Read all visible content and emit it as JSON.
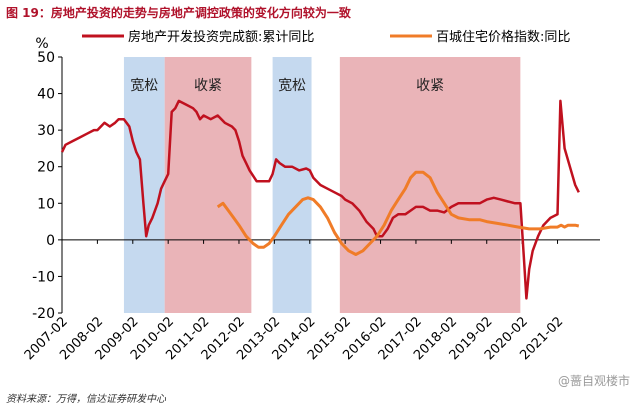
{
  "figure_title": "图 19：房地产投资的走势与房地产调控政策的变化方向较为一致",
  "source": "资料来源：万得，信达证券研发中心",
  "watermark": "@蔷自观楼市",
  "chart_data": {
    "type": "line",
    "ylabel": "%",
    "ylim": [
      -20,
      50
    ],
    "yticks": [
      -20,
      -10,
      0,
      10,
      20,
      30,
      40,
      50
    ],
    "xlim": [
      2007.0,
      2022.2
    ],
    "xtick_labels": [
      "2007-02",
      "2008-02",
      "2009-02",
      "2010-02",
      "2011-02",
      "2012-02",
      "2013-02",
      "2014-02",
      "2015-02",
      "2016-02",
      "2017-02",
      "2018-02",
      "2019-02",
      "2020-02",
      "2021-02"
    ],
    "xtick_values": [
      2007,
      2008,
      2009,
      2010,
      2011,
      2012,
      2013,
      2014,
      2015,
      2016,
      2017,
      2018,
      2019,
      2020,
      2021
    ],
    "policy_periods": [
      {
        "label": "宽松",
        "start": 2008.75,
        "end": 2009.9,
        "color": "#c5d9ef"
      },
      {
        "label": "收紧",
        "start": 2009.9,
        "end": 2012.35,
        "color": "#eab4b8"
      },
      {
        "label": "宽松",
        "start": 2012.95,
        "end": 2014.05,
        "color": "#c5d9ef"
      },
      {
        "label": "收紧",
        "start": 2014.85,
        "end": 2019.95,
        "color": "#eab4b8"
      }
    ],
    "series": [
      {
        "name": "房地产开发投资完成额:累计同比",
        "color": "#c0111f",
        "points": [
          [
            2007.0,
            24
          ],
          [
            2007.1,
            26
          ],
          [
            2007.3,
            27
          ],
          [
            2007.5,
            28
          ],
          [
            2007.7,
            29
          ],
          [
            2007.9,
            30
          ],
          [
            2008.0,
            30
          ],
          [
            2008.2,
            32
          ],
          [
            2008.35,
            31
          ],
          [
            2008.5,
            32
          ],
          [
            2008.6,
            33
          ],
          [
            2008.75,
            33
          ],
          [
            2008.9,
            31
          ],
          [
            2009.0,
            27
          ],
          [
            2009.1,
            24
          ],
          [
            2009.2,
            22
          ],
          [
            2009.3,
            10
          ],
          [
            2009.38,
            1
          ],
          [
            2009.45,
            4
          ],
          [
            2009.55,
            6
          ],
          [
            2009.7,
            10
          ],
          [
            2009.8,
            14
          ],
          [
            2009.9,
            16
          ],
          [
            2010.0,
            18
          ],
          [
            2010.1,
            35
          ],
          [
            2010.2,
            36
          ],
          [
            2010.3,
            38
          ],
          [
            2010.5,
            37
          ],
          [
            2010.7,
            36
          ],
          [
            2010.8,
            35
          ],
          [
            2010.9,
            33
          ],
          [
            2011.0,
            34
          ],
          [
            2011.2,
            33
          ],
          [
            2011.4,
            34
          ],
          [
            2011.6,
            32
          ],
          [
            2011.8,
            31
          ],
          [
            2011.9,
            30
          ],
          [
            2012.0,
            27
          ],
          [
            2012.1,
            23
          ],
          [
            2012.2,
            21
          ],
          [
            2012.3,
            19
          ],
          [
            2012.5,
            16
          ],
          [
            2012.7,
            16
          ],
          [
            2012.85,
            16
          ],
          [
            2012.95,
            18
          ],
          [
            2013.05,
            22
          ],
          [
            2013.15,
            21
          ],
          [
            2013.3,
            20
          ],
          [
            2013.5,
            20
          ],
          [
            2013.7,
            19
          ],
          [
            2013.9,
            19.5
          ],
          [
            2014.0,
            19
          ],
          [
            2014.1,
            17
          ],
          [
            2014.3,
            15
          ],
          [
            2014.5,
            14
          ],
          [
            2014.7,
            13
          ],
          [
            2014.9,
            12
          ],
          [
            2015.0,
            11
          ],
          [
            2015.2,
            10
          ],
          [
            2015.4,
            8
          ],
          [
            2015.6,
            5
          ],
          [
            2015.8,
            3
          ],
          [
            2015.9,
            1
          ],
          [
            2016.05,
            1
          ],
          [
            2016.2,
            3
          ],
          [
            2016.35,
            6
          ],
          [
            2016.5,
            7
          ],
          [
            2016.7,
            7
          ],
          [
            2016.85,
            8
          ],
          [
            2017.0,
            9
          ],
          [
            2017.2,
            9
          ],
          [
            2017.4,
            8
          ],
          [
            2017.6,
            8
          ],
          [
            2017.8,
            7.5
          ],
          [
            2018.0,
            9
          ],
          [
            2018.2,
            10
          ],
          [
            2018.4,
            10
          ],
          [
            2018.6,
            10
          ],
          [
            2018.8,
            10
          ],
          [
            2019.0,
            11
          ],
          [
            2019.2,
            11.5
          ],
          [
            2019.4,
            11
          ],
          [
            2019.6,
            10.5
          ],
          [
            2019.8,
            10
          ],
          [
            2019.95,
            10
          ],
          [
            2020.05,
            -5
          ],
          [
            2020.12,
            -16
          ],
          [
            2020.2,
            -8
          ],
          [
            2020.3,
            -3
          ],
          [
            2020.45,
            1
          ],
          [
            2020.6,
            4
          ],
          [
            2020.8,
            6
          ],
          [
            2021.0,
            7
          ],
          [
            2021.08,
            38
          ],
          [
            2021.2,
            25
          ],
          [
            2021.35,
            20
          ],
          [
            2021.5,
            15
          ],
          [
            2021.6,
            13
          ]
        ]
      },
      {
        "name": "百城住宅价格指数:同比",
        "color": "#f07c28",
        "points": [
          [
            2011.4,
            9
          ],
          [
            2011.55,
            10
          ],
          [
            2011.7,
            8
          ],
          [
            2011.85,
            6
          ],
          [
            2012.0,
            4
          ],
          [
            2012.2,
            1
          ],
          [
            2012.4,
            -1
          ],
          [
            2012.55,
            -2
          ],
          [
            2012.7,
            -2
          ],
          [
            2012.85,
            -1
          ],
          [
            2013.0,
            1
          ],
          [
            2013.2,
            4
          ],
          [
            2013.4,
            7
          ],
          [
            2013.6,
            9
          ],
          [
            2013.8,
            11
          ],
          [
            2013.95,
            11.5
          ],
          [
            2014.1,
            11
          ],
          [
            2014.3,
            9
          ],
          [
            2014.5,
            6
          ],
          [
            2014.7,
            2
          ],
          [
            2014.9,
            -1
          ],
          [
            2015.1,
            -3
          ],
          [
            2015.3,
            -4
          ],
          [
            2015.5,
            -3
          ],
          [
            2015.7,
            -1
          ],
          [
            2015.9,
            1
          ],
          [
            2016.1,
            4
          ],
          [
            2016.3,
            8
          ],
          [
            2016.5,
            11
          ],
          [
            2016.7,
            14
          ],
          [
            2016.85,
            17
          ],
          [
            2017.0,
            18.5
          ],
          [
            2017.2,
            18.5
          ],
          [
            2017.4,
            17
          ],
          [
            2017.6,
            13
          ],
          [
            2017.8,
            10
          ],
          [
            2018.0,
            7
          ],
          [
            2018.2,
            6
          ],
          [
            2018.5,
            5.5
          ],
          [
            2018.8,
            5.5
          ],
          [
            2019.0,
            5
          ],
          [
            2019.3,
            4.5
          ],
          [
            2019.6,
            4
          ],
          [
            2019.9,
            3.5
          ],
          [
            2020.2,
            3
          ],
          [
            2020.5,
            3
          ],
          [
            2020.8,
            3.5
          ],
          [
            2021.0,
            3.5
          ],
          [
            2021.1,
            4
          ],
          [
            2021.2,
            3.5
          ],
          [
            2021.3,
            4
          ],
          [
            2021.5,
            4
          ],
          [
            2021.6,
            3.8
          ]
        ]
      }
    ]
  }
}
